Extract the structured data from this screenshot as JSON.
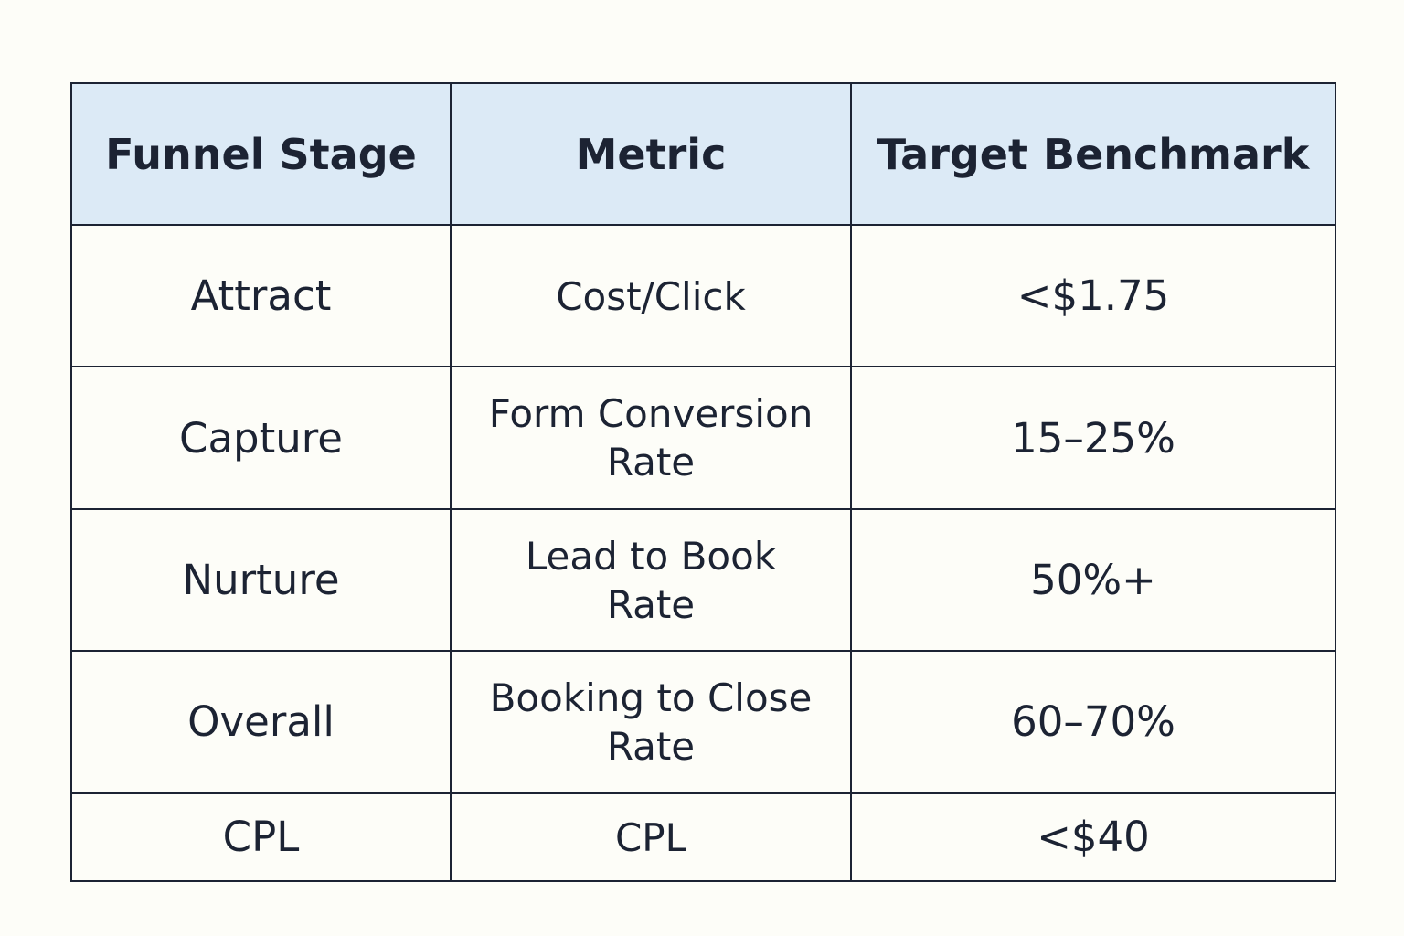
{
  "table": {
    "headers": [
      "Funnel Stage",
      "Metric",
      "Target Benchmark"
    ],
    "rows": [
      {
        "stage": "Attract",
        "metric": "Cost/Click",
        "benchmark": "<$1.75"
      },
      {
        "stage": "Capture",
        "metric": "Form Conversion Rate",
        "benchmark": "15–25%"
      },
      {
        "stage": "Nurture",
        "metric": "Lead to Book Rate",
        "benchmark": "50%+"
      },
      {
        "stage": "Overall",
        "metric": "Booking to Close Rate",
        "benchmark": "60–70%"
      },
      {
        "stage": "CPL",
        "metric": "CPL",
        "benchmark": "<$40"
      }
    ]
  },
  "colors": {
    "header_background": "#dceaf6",
    "border": "#1c2333",
    "page_background": "#fdfdf8",
    "text": "#1c2333"
  }
}
